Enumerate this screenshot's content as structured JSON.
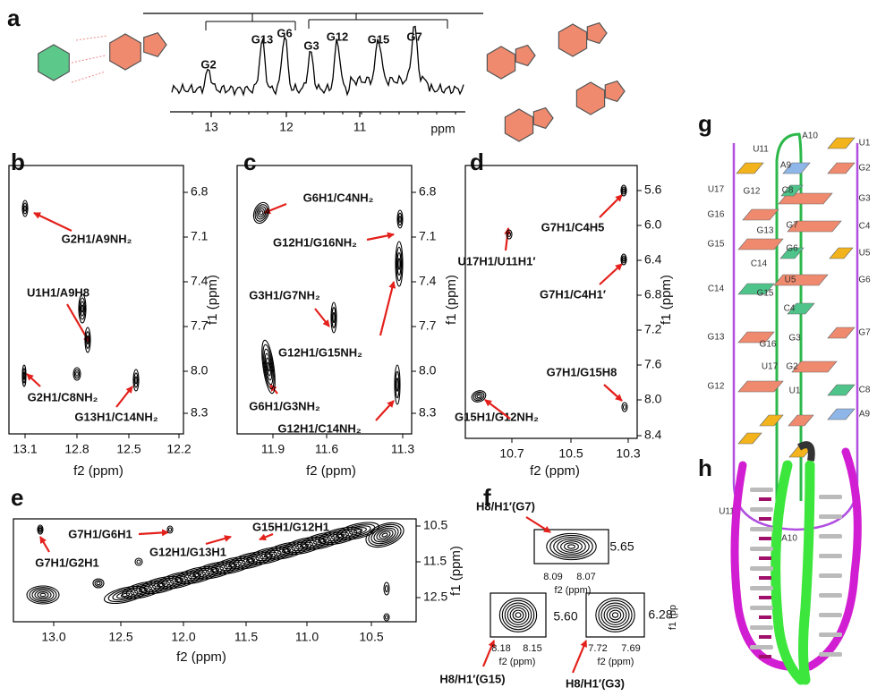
{
  "panels": [
    {
      "label": "a",
      "peaks": [
        "G2",
        "G13",
        "G6",
        "G3",
        "G12",
        "G15",
        "G7"
      ],
      "xticks": [
        "13",
        "12",
        "11"
      ],
      "xunit": "ppm"
    },
    {
      "label": "b",
      "xticks": [
        "13.1",
        "12.8",
        "12.5",
        "12.2"
      ],
      "yticks": [
        "6.8",
        "7.1",
        "7.4",
        "7.7",
        "8.0",
        "8.3"
      ],
      "xlabel": "f2 (ppm)",
      "ylabel": "f1 (ppm)",
      "annotations": [
        "G2H1/A9NH₂",
        "U1H1/A9H8",
        "G2H1/C8NH₂",
        "G13H1/C14NH₂"
      ]
    },
    {
      "label": "c",
      "xticks": [
        "11.9",
        "11.6",
        "11.3"
      ],
      "yticks": [
        "6.8",
        "7.1",
        "7.4",
        "7.7",
        "8.0",
        "8.3"
      ],
      "xlabel": "f2 (ppm)",
      "ylabel": "f1 (ppm)",
      "annotations": [
        "G6H1/C4NH₂",
        "G12H1/G16NH₂",
        "G3H1/G7NH₂",
        "G12H1/G15NH₂",
        "G6H1/G3NH₂",
        "G12H1/C14NH₂"
      ]
    },
    {
      "label": "d",
      "xticks": [
        "10.7",
        "10.5",
        "10.3"
      ],
      "yticks": [
        "5.6",
        "6.0",
        "6.4",
        "6.8",
        "7.2",
        "7.6",
        "8.0",
        "8.4"
      ],
      "xlabel": "f2 (ppm)",
      "ylabel": "f1 (ppm)",
      "annotations": [
        "G7H1/C4H5",
        "U17H1/U11H1′",
        "G7H1/C4H1′",
        "G7H1/G15H8",
        "G15H1/G12NH₂"
      ]
    },
    {
      "label": "e",
      "xticks": [
        "13.0",
        "12.5",
        "12.0",
        "11.5",
        "11.0",
        "10.5"
      ],
      "yticks": [
        "10.5",
        "11.5",
        "12.5"
      ],
      "xlabel": "f2 (ppm)",
      "ylabel": "f1 (ppm)",
      "annotations": [
        "G7H1/G6H1",
        "G7H1/G2H1",
        "G12H1/G13H1",
        "G15H1/G12H1"
      ]
    },
    {
      "label": "f",
      "insets": [
        {
          "title": "H8/H1′(G7)",
          "xticks": [
            "8.09",
            "8.07"
          ],
          "ytick": "5.65",
          "xlabel": "f2 (ppm)"
        },
        {
          "title": "H8/H1′(G15)",
          "xticks": [
            "8.18",
            "8.15"
          ],
          "ytick": "5.60",
          "xlabel": "f2 (ppm)"
        },
        {
          "title": "H8/H1′(G3)",
          "xticks": [
            "7.72",
            "7.69"
          ],
          "ytick": "6.28",
          "xlabel": "f2 (ppm)",
          "ylabel": "f1 (pp"
        }
      ]
    },
    {
      "label": "g",
      "nucleotides": [
        "U1",
        "G2",
        "G3",
        "C4",
        "U5",
        "G6",
        "G7",
        "C8",
        "A9",
        "U17",
        "G16",
        "G15",
        "C14",
        "G13",
        "G12",
        "U11",
        "U11",
        "A10",
        "A9",
        "G12",
        "C8",
        "G13",
        "G7",
        "G6",
        "C14",
        "U5",
        "G15",
        "C4",
        "G16",
        "G3",
        "U17",
        "G2",
        "U1",
        "A10"
      ]
    },
    {
      "label": "h"
    }
  ]
}
